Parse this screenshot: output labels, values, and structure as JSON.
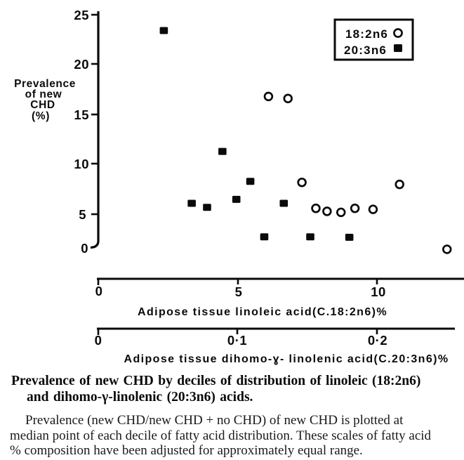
{
  "figure": {
    "y_axis": {
      "label_lines": [
        "Prevalence",
        "of new",
        "CHD",
        "(%)"
      ],
      "ticks": [
        "25",
        "20",
        "15",
        "10",
        "5",
        "0"
      ]
    },
    "x_axis_linoleic": {
      "ticks": [
        "0",
        "5",
        "10"
      ],
      "label": "Adipose tissue linoleic acid(C.18:2n6)%"
    },
    "x_axis_dihomo": {
      "ticks": [
        "0",
        "0·1",
        "0·2"
      ],
      "label": "Adipose tissue dihomo-ɣ- linolenic acid(C.20:3n6)%"
    },
    "legend": {
      "items": [
        {
          "label": "18:2n6",
          "marker": "open-circle"
        },
        {
          "label": "20:3n6",
          "marker": "filled-square"
        }
      ]
    }
  },
  "chart_data": {
    "type": "scatter",
    "title": "Prevalence of new CHD by deciles of distribution of linoleic (18:2n6) and dihomo-γ-linolenic (20:3n6) acids",
    "ylabel": "Prevalence of new CHD (%)",
    "ylim": [
      0,
      25
    ],
    "x_axes": [
      {
        "id": "linoleic",
        "label": "Adipose tissue linoleic acid (C.18:2n6) %",
        "ticks": [
          0,
          5,
          10
        ],
        "range": [
          0,
          13.1
        ]
      },
      {
        "id": "dihomo",
        "label": "Adipose tissue dihomo-γ-linolenic acid (C.20:3n6) %",
        "ticks": [
          0,
          0.1,
          0.2
        ],
        "range": [
          0,
          0.262
        ]
      }
    ],
    "series": [
      {
        "name": "18:2n6",
        "marker": "open-circle",
        "x_axis": "linoleic",
        "points": [
          [
            6.1,
            16.8
          ],
          [
            6.8,
            16.6
          ],
          [
            7.3,
            8.2
          ],
          [
            7.8,
            5.6
          ],
          [
            8.2,
            5.3
          ],
          [
            8.7,
            5.2
          ],
          [
            9.2,
            5.6
          ],
          [
            9.85,
            5.5
          ],
          [
            10.8,
            8.0
          ],
          [
            12.5,
            1.5
          ]
        ]
      },
      {
        "name": "20:3n6",
        "marker": "filled-square",
        "x_axis": "dihomo",
        "points": [
          [
            0.047,
            23.4
          ],
          [
            0.067,
            6.1
          ],
          [
            0.078,
            5.7
          ],
          [
            0.089,
            11.3
          ],
          [
            0.099,
            6.5
          ],
          [
            0.109,
            8.3
          ],
          [
            0.119,
            2.75
          ],
          [
            0.133,
            6.1
          ],
          [
            0.152,
            2.75
          ],
          [
            0.18,
            2.7
          ]
        ]
      }
    ],
    "legend_position": "upper right",
    "grid": false
  },
  "caption": {
    "line1": "Prevalence of new CHD by deciles of distribution of linoleic (18:2n6)",
    "line2": "and dihomo-γ-linolenic (20:3n6) acids."
  },
  "body": {
    "line1": "Prevalence (new CHD/new CHD + no CHD) of new CHD is plotted at",
    "line2": "median point of each decile of fatty acid distribution. These scales of fatty acid",
    "line3": "% composition have been adjusted for approximately equal range."
  }
}
